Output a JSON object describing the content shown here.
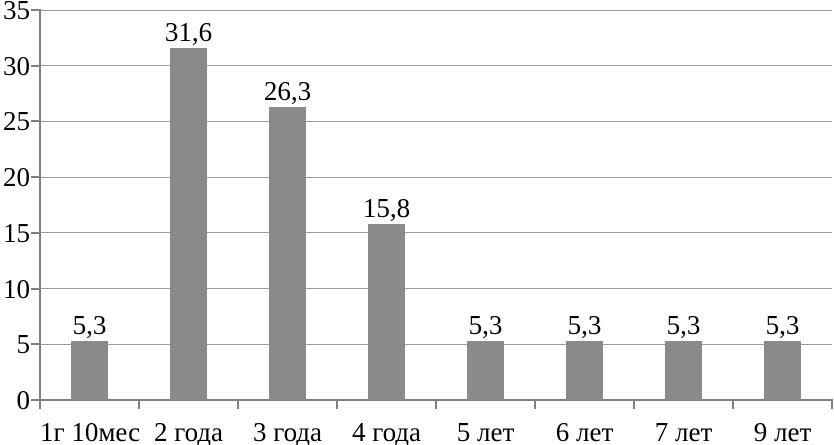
{
  "chart_data": {
    "type": "bar",
    "title": "",
    "xlabel": "",
    "ylabel": "",
    "categories": [
      "1г 10мес",
      "2 года",
      "3 года",
      "4 года",
      "5 лет",
      "6 лет",
      "7 лет",
      "9 лет"
    ],
    "values": [
      5.3,
      31.6,
      26.3,
      15.8,
      5.3,
      5.3,
      5.3,
      5.3
    ],
    "value_labels": [
      "5,3",
      "31,6",
      "26,3",
      "15,8",
      "5,3",
      "5,3",
      "5,3",
      "5,3"
    ],
    "y_ticks": [
      0,
      5,
      10,
      15,
      20,
      25,
      30,
      35
    ],
    "y_tick_labels": [
      "0",
      "5",
      "10",
      "15",
      "20",
      "25",
      "30",
      "35"
    ],
    "ylim": [
      0,
      35
    ],
    "grid": true,
    "legend": "none",
    "colors": {
      "bar": "#8a8a8a",
      "gridline": "#9d9d9d",
      "axis": "#808080",
      "text": "#000000",
      "background": "#ffffff"
    }
  }
}
